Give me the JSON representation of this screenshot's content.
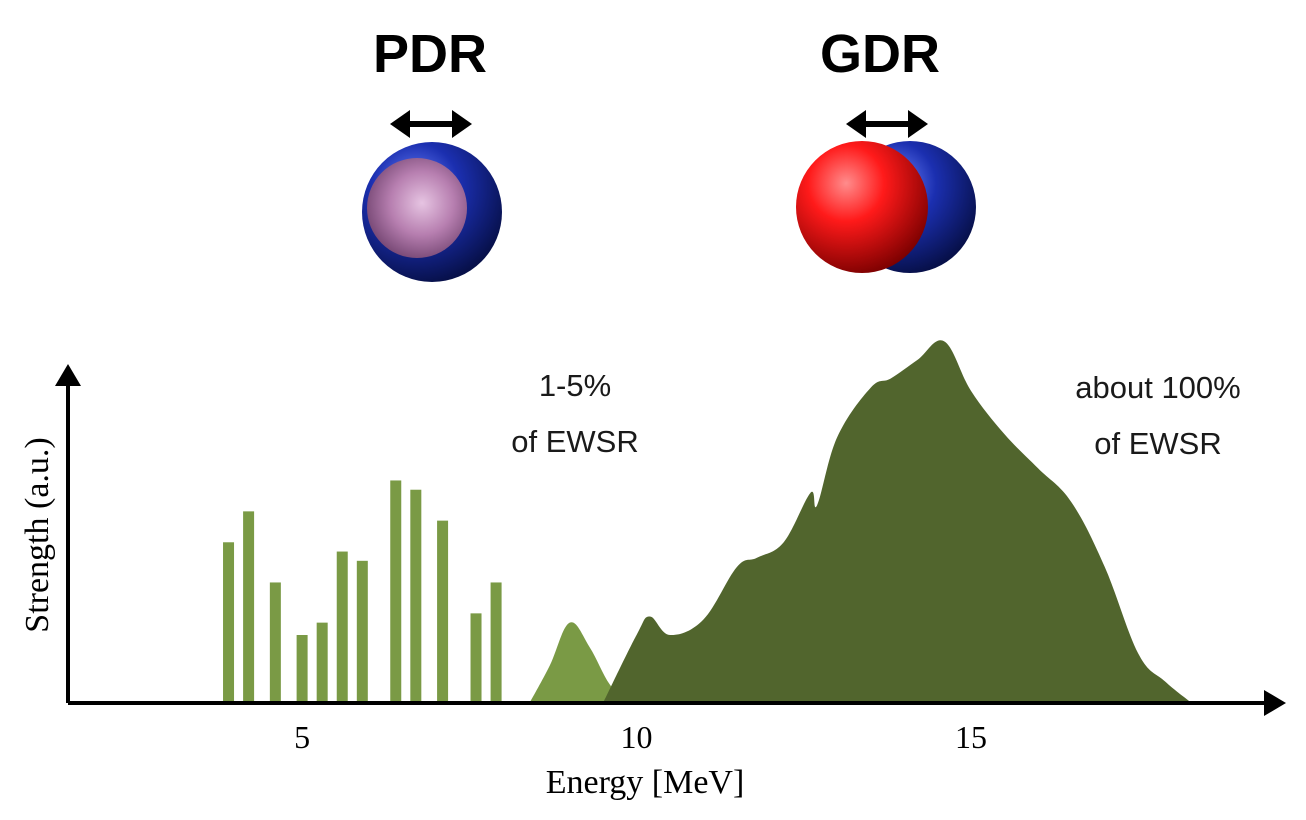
{
  "pdr": {
    "title": "PDR"
  },
  "gdr": {
    "title": "GDR"
  },
  "annotations": {
    "pdr_line1": "1-5%",
    "pdr_line2": "of EWSR",
    "gdr_line1": "about 100%",
    "gdr_line2": "of EWSR"
  },
  "colors": {
    "pdr_bars": "#7a9a45",
    "pdr_peak": "#7a9a45",
    "gdr_fill": "#51652d",
    "proton_red": "#ff1a1a",
    "neutron_blue": "#1b2fb0",
    "pdr_core": "#b77fb0",
    "axis": "#000000"
  },
  "chart_data": {
    "type": "bar",
    "xlabel": "Energy [MeV]",
    "ylabel": "Strength (a.u.)",
    "xlim": [
      1.5,
      19.5
    ],
    "ylim": [
      0,
      1.1
    ],
    "x_ticks": [
      "5",
      "10",
      "15"
    ],
    "x_tick_values": [
      5,
      10,
      15
    ],
    "series": [
      {
        "kind": "bars",
        "x": [
          3.9,
          4.2,
          4.6,
          5.0,
          5.3,
          5.6,
          5.9,
          6.4,
          6.7,
          7.1,
          7.6,
          7.9
        ],
        "values": [
          0.52,
          0.62,
          0.39,
          0.22,
          0.26,
          0.49,
          0.46,
          0.72,
          0.69,
          0.59,
          0.29,
          0.39
        ]
      },
      {
        "kind": "area",
        "x": [
          8.4,
          8.7,
          9.0,
          9.3,
          9.6,
          9.9
        ],
        "values": [
          0.0,
          0.12,
          0.26,
          0.18,
          0.06,
          0.0
        ]
      },
      {
        "kind": "area",
        "x": [
          9.5,
          10.0,
          10.2,
          10.5,
          11.0,
          11.5,
          11.8,
          12.2,
          12.6,
          12.7,
          13.0,
          13.5,
          13.8,
          14.2,
          14.6,
          15.0,
          15.5,
          16.0,
          16.5,
          17.0,
          17.5,
          17.9,
          18.3
        ],
        "values": [
          0.0,
          0.22,
          0.28,
          0.22,
          0.27,
          0.44,
          0.47,
          0.52,
          0.68,
          0.64,
          0.86,
          1.02,
          1.05,
          1.11,
          1.17,
          1.01,
          0.87,
          0.76,
          0.65,
          0.44,
          0.16,
          0.07,
          0.0
        ]
      }
    ]
  }
}
